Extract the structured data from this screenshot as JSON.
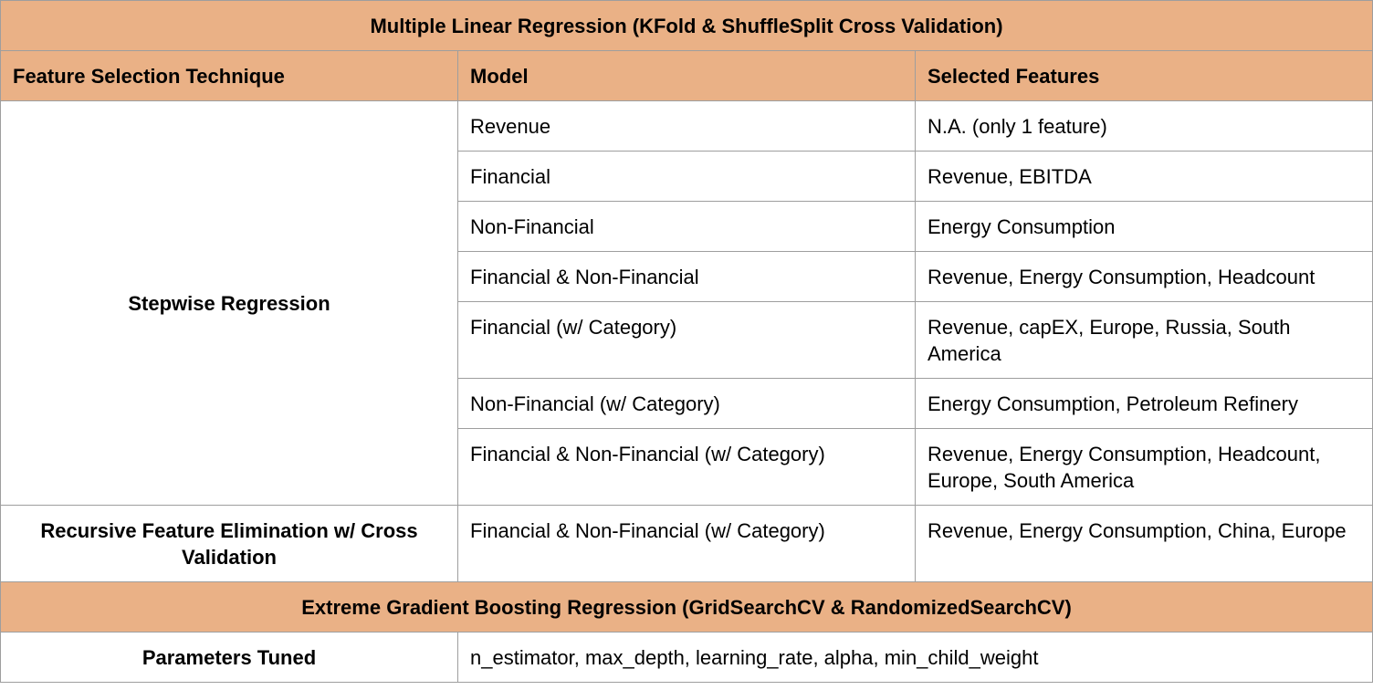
{
  "mlr_title": "Multiple Linear Regression (KFold & ShuffleSplit Cross Validation)",
  "columns": [
    "Feature Selection Technique",
    "Model",
    "Selected Features"
  ],
  "stepwise": {
    "technique": "Stepwise Regression",
    "rows": [
      {
        "model": "Revenue",
        "features": "N.A. (only 1 feature)"
      },
      {
        "model": "Financial",
        "features": "Revenue, EBITDA"
      },
      {
        "model": "Non-Financial",
        "features": "Energy Consumption"
      },
      {
        "model": "Financial & Non-Financial",
        "features": "Revenue, Energy Consumption, Headcount"
      },
      {
        "model": "Financial (w/ Category)",
        "features": "Revenue, capEX, Europe, Russia, South America"
      },
      {
        "model": "Non-Financial (w/ Category)",
        "features": "Energy Consumption, Petroleum Refinery"
      },
      {
        "model": "Financial & Non-Financial (w/ Category)",
        "features": "Revenue, Energy Consumption, Headcount, Europe, South America"
      }
    ]
  },
  "rfecv": {
    "technique": "Recursive Feature Elimination w/ Cross Validation",
    "model": "Financial & Non-Financial (w/ Category)",
    "features": "Revenue, Energy Consumption, China, Europe"
  },
  "xgb_title": "Extreme Gradient Boosting Regression (GridSearchCV & RandomizedSearchCV)",
  "params": {
    "label": "Parameters Tuned",
    "value": "n_estimator, max_depth, learning_rate, alpha, min_child_weight"
  },
  "colors": {
    "header_bg": "#eab186",
    "border": "#9e9e9e"
  }
}
